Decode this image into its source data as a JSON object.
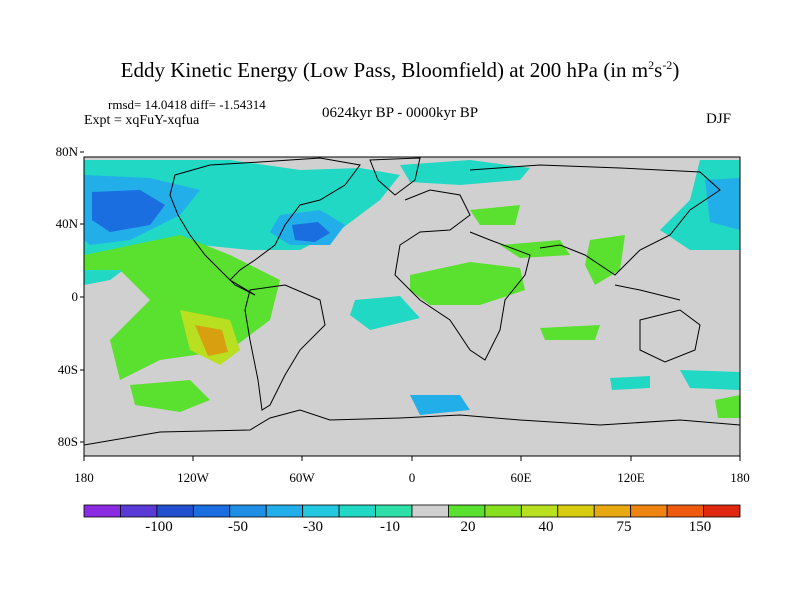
{
  "title": {
    "main": "Eddy Kinetic Energy (Low Pass, Bloomfield) at 200 hPa (in m",
    "sup1": "2",
    "mid": "s",
    "sup2": "-2",
    "end": ")"
  },
  "stats": "rmsd= 14.0418 diff= -1.54314",
  "experiment": "Expt = xqFuY-xqfua",
  "period": "0624kyr BP - 0000kyr BP",
  "season": "DJF",
  "lat_labels": [
    "80N",
    "40N",
    "0",
    "40S",
    "80S"
  ],
  "lon_labels": [
    "180",
    "120W",
    "60W",
    "0",
    "60E",
    "120E",
    "180"
  ],
  "colorbar": {
    "labels": [
      "-100",
      "-50",
      "-30",
      "-10",
      "20",
      "40",
      "75",
      "150"
    ],
    "colors": [
      "#8a2be2",
      "#5a3ad6",
      "#2050d0",
      "#1a6ee0",
      "#1f8fe6",
      "#22aee8",
      "#22c8e0",
      "#20d8c4",
      "#2ee0a8",
      "#d0d0d0",
      "#5ae02e",
      "#86e020",
      "#b8e020",
      "#d8cc10",
      "#e8a810",
      "#f08410",
      "#ee5a10",
      "#e02810"
    ]
  },
  "colors": {
    "land_bg": "#d0d0d0",
    "ocean_cyan": "#20d8c4",
    "blue_mid": "#22aee8",
    "blue_dark": "#1a6ee0",
    "green": "#5ae02e",
    "yellow_green": "#b8e020",
    "orange": "#d8a010"
  }
}
